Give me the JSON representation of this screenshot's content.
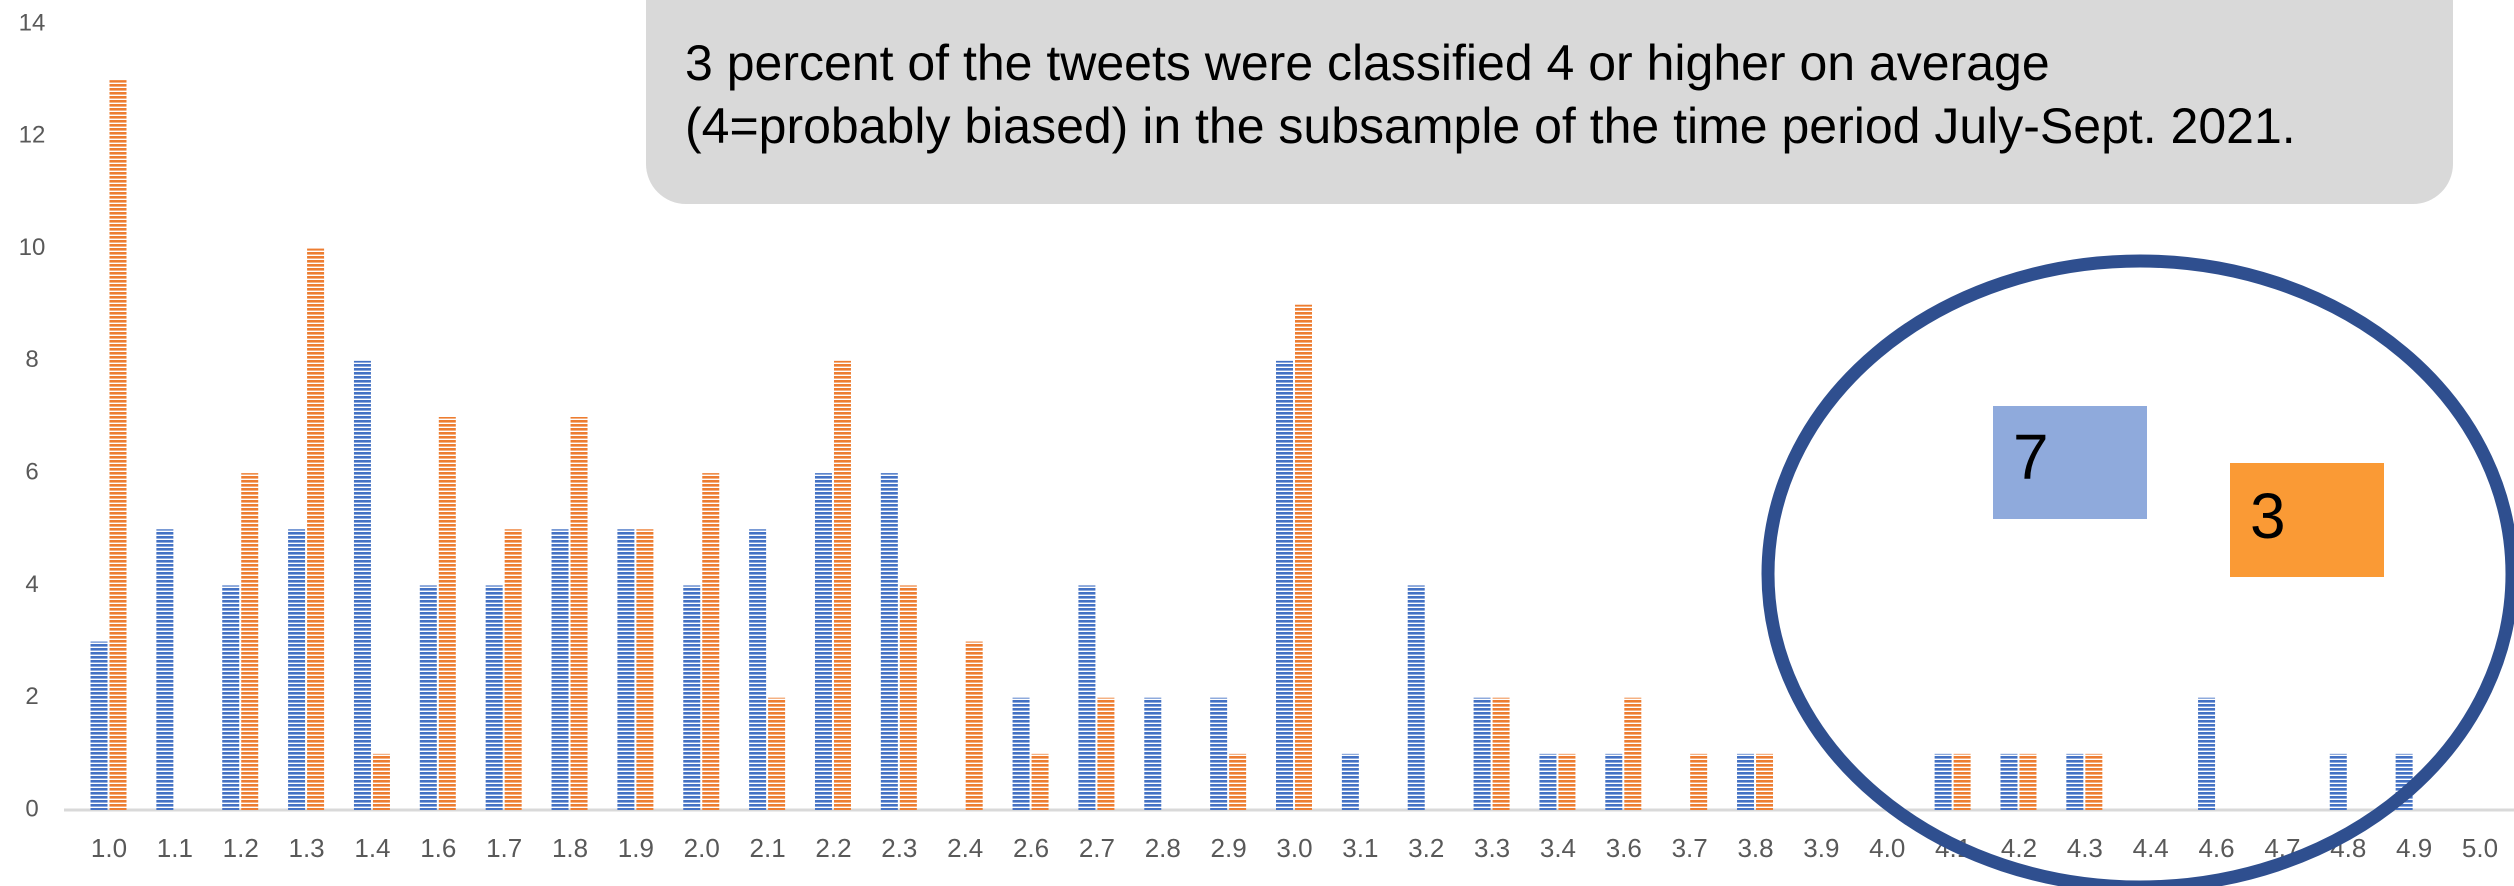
{
  "chart_data": {
    "type": "bar",
    "categories": [
      "1.0",
      "1.1",
      "1.2",
      "1.3",
      "1.4",
      "1.6",
      "1.7",
      "1.8",
      "1.9",
      "2.0",
      "2.1",
      "2.2",
      "2.3",
      "2.4",
      "2.6",
      "2.7",
      "2.8",
      "2.9",
      "3.0",
      "3.1",
      "3.2",
      "3.3",
      "3.4",
      "3.6",
      "3.7",
      "3.8",
      "3.9",
      "4.0",
      "4.1",
      "4.2",
      "4.3",
      "4.4",
      "4.6",
      "4.7",
      "4.8",
      "4.9",
      "5.0"
    ],
    "series": [
      {
        "color": "#4472c4",
        "values": [
          3,
          5,
          4,
          5,
          8,
          4,
          4,
          5,
          5,
          4,
          5,
          6,
          6,
          0,
          2,
          4,
          2,
          2,
          8,
          1,
          4,
          2,
          1,
          1,
          0,
          1,
          0,
          0,
          1,
          1,
          1,
          0,
          2,
          0,
          1,
          1,
          0
        ]
      },
      {
        "color": "#ed7d31",
        "values": [
          13,
          0,
          6,
          10,
          1,
          7,
          5,
          7,
          5,
          6,
          2,
          8,
          4,
          3,
          1,
          2,
          0,
          1,
          9,
          0,
          0,
          2,
          1,
          2,
          1,
          1,
          0,
          0,
          1,
          1,
          1,
          0,
          0,
          0,
          0,
          0,
          0
        ]
      }
    ],
    "ylim": [
      0,
      14
    ],
    "yticks": [
      0,
      2,
      4,
      6,
      8,
      10,
      12,
      14
    ],
    "text_box": [
      "3 percent of the tweets were classified 4 or higher on average",
      "(4=probably biased) in the subsample of the time period July-Sept. 2021."
    ],
    "annotations": [
      {
        "label": "7",
        "color": "#8faadc"
      },
      {
        "label": "3",
        "color": "#fa9a35"
      }
    ]
  }
}
